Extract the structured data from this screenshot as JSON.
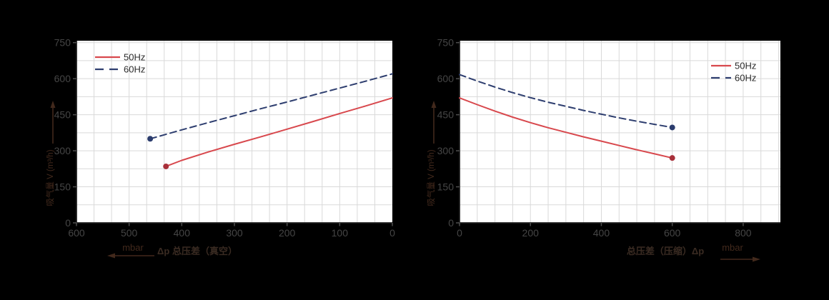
{
  "figure": {
    "background": "#000000",
    "plot_background": "#ffffff"
  },
  "colors": {
    "grid": "#d9d9d9",
    "spine": "#1f1f1f",
    "tick_mark": "#4f4f4f",
    "tick_text": "#454545",
    "axis_label_text": "#3a2b22",
    "unit_text": "#42291c",
    "legend_text": "#2b2b2b",
    "red": "#d8484d",
    "red_marker": "#a8303a",
    "navy": "#2e3e6f",
    "navy_marker": "#2b3c6d"
  },
  "chart_data": [
    {
      "type": "line",
      "title": "",
      "ylabel": "吸气量 V (m³/h)",
      "xlabel": "Δp 总压差（真空）",
      "x_unit": "mbar",
      "x_unit_arrow": "left",
      "x_ticks": [
        600,
        500,
        400,
        300,
        200,
        100,
        0
      ],
      "y_ticks": [
        0,
        150,
        300,
        450,
        600,
        750
      ],
      "xlim": [
        600,
        0
      ],
      "ylim": [
        0,
        758
      ],
      "grid": {
        "on": true,
        "x_minor_per_tick": 3,
        "y_minor_per_tick": 2
      },
      "legend_position": "top-left",
      "series": [
        {
          "name": "50Hz",
          "style": "solid",
          "color": "#d8484d",
          "marker_color": "#a8303a",
          "marker_point": [
            430,
            235
          ],
          "points": [
            [
              430,
              235
            ],
            [
              400,
              260
            ],
            [
              350,
              295
            ],
            [
              300,
              327
            ],
            [
              250,
              358
            ],
            [
              200,
              390
            ],
            [
              150,
              422
            ],
            [
              100,
              455
            ],
            [
              50,
              487
            ],
            [
              0,
              520
            ]
          ]
        },
        {
          "name": "60Hz",
          "style": "dashed",
          "color": "#2e3e6f",
          "marker_color": "#2b3c6d",
          "marker_point": [
            460,
            350
          ],
          "points": [
            [
              460,
              350
            ],
            [
              400,
              387
            ],
            [
              350,
              417
            ],
            [
              300,
              446
            ],
            [
              250,
              475
            ],
            [
              200,
              503
            ],
            [
              150,
              532
            ],
            [
              100,
              561
            ],
            [
              50,
              590
            ],
            [
              0,
              620
            ]
          ]
        }
      ]
    },
    {
      "type": "line",
      "title": "",
      "ylabel": "吸气量 V (m³/h)",
      "xlabel": "总压差（压缩）Δp",
      "x_unit": "mbar",
      "x_unit_arrow": "right",
      "x_ticks": [
        0,
        200,
        400,
        600,
        800
      ],
      "y_ticks": [
        0,
        150,
        300,
        450,
        600,
        750
      ],
      "xlim": [
        0,
        905
      ],
      "ylim": [
        0,
        758
      ],
      "grid": {
        "on": true,
        "x_minor_per_tick": 4,
        "y_minor_per_tick": 2
      },
      "legend_position": "top-right",
      "series": [
        {
          "name": "50Hz",
          "style": "solid",
          "color": "#d8484d",
          "marker_color": "#a8303a",
          "marker_point": [
            600,
            270
          ],
          "points": [
            [
              0,
              520
            ],
            [
              50,
              492
            ],
            [
              100,
              465
            ],
            [
              150,
              440
            ],
            [
              200,
              417
            ],
            [
              250,
              396
            ],
            [
              300,
              377
            ],
            [
              350,
              358
            ],
            [
              400,
              340
            ],
            [
              450,
              322
            ],
            [
              500,
              304
            ],
            [
              550,
              287
            ],
            [
              600,
              270
            ]
          ]
        },
        {
          "name": "60Hz",
          "style": "dashed",
          "color": "#2e3e6f",
          "marker_color": "#2b3c6d",
          "marker_point": [
            600,
            397
          ],
          "points": [
            [
              0,
              617
            ],
            [
              50,
              590
            ],
            [
              100,
              565
            ],
            [
              150,
              542
            ],
            [
              200,
              521
            ],
            [
              250,
              502
            ],
            [
              300,
              485
            ],
            [
              350,
              468
            ],
            [
              400,
              452
            ],
            [
              450,
              437
            ],
            [
              500,
              423
            ],
            [
              550,
              410
            ],
            [
              600,
              397
            ]
          ]
        }
      ]
    }
  ]
}
